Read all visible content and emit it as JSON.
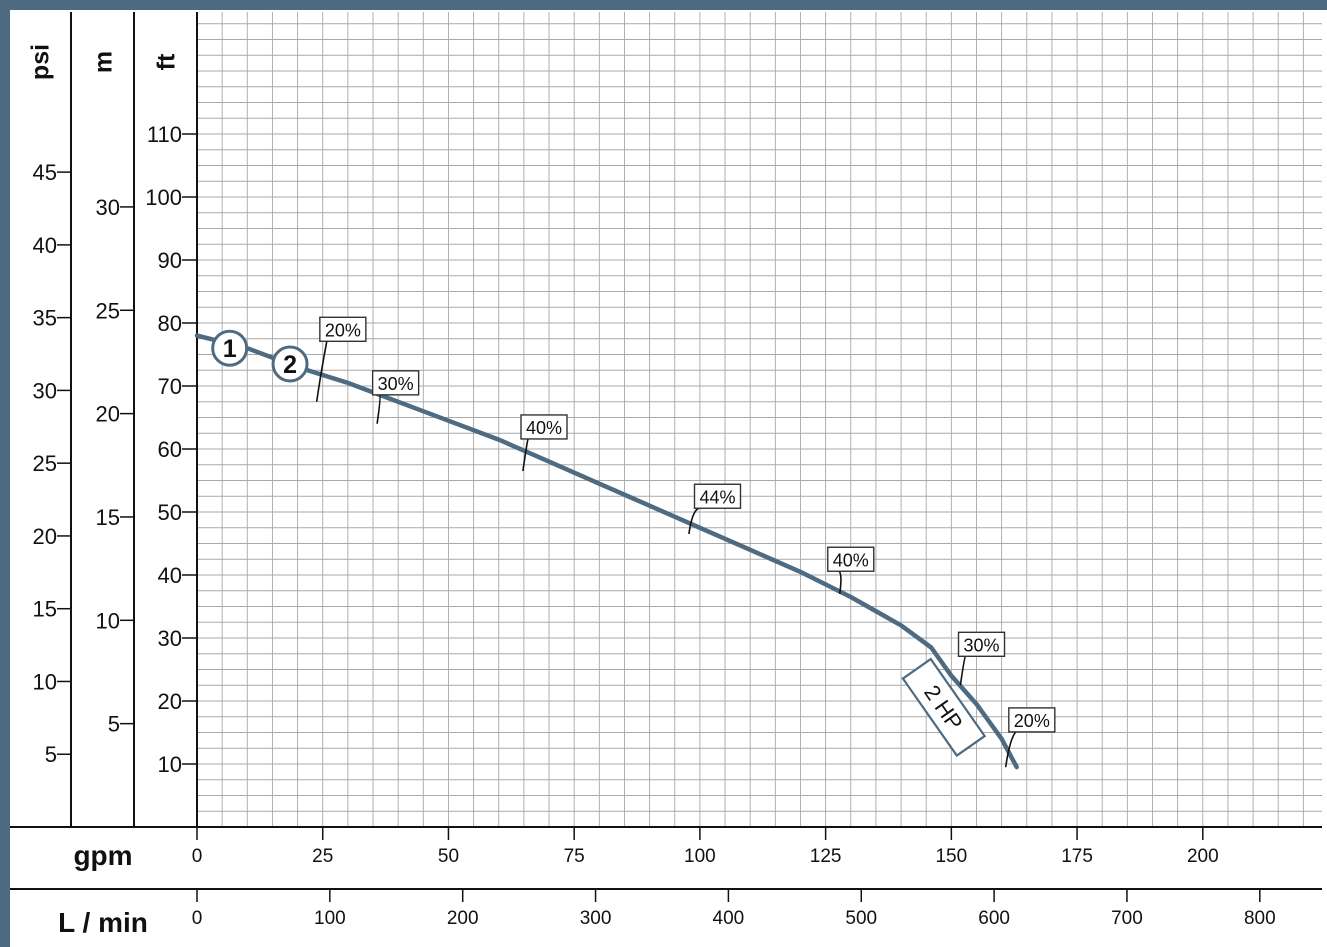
{
  "chart_data": {
    "type": "line",
    "title": "",
    "axes": {
      "flow_gpm": {
        "unit": "gpm",
        "range": [
          0,
          225
        ],
        "ticks": [
          0,
          25,
          50,
          75,
          100,
          125,
          150,
          175,
          200
        ]
      },
      "flow_lmin": {
        "unit": "L / min",
        "ticks": [
          0,
          100,
          200,
          300,
          400,
          500,
          600,
          700,
          800
        ]
      },
      "head_ft": {
        "unit": "ft",
        "range": [
          0,
          125
        ],
        "ticks": [
          10,
          20,
          30,
          40,
          50,
          60,
          70,
          80,
          90,
          100,
          110
        ]
      },
      "head_m": {
        "unit": "m",
        "ticks": [
          5,
          10,
          15,
          20,
          25,
          30
        ]
      },
      "pressure_psi": {
        "unit": "psi",
        "ticks": [
          5,
          10,
          15,
          20,
          25,
          30,
          35,
          40,
          45
        ]
      }
    },
    "grid": true,
    "series": [
      {
        "name": "2 HP",
        "color": "#4e6b82",
        "x": [
          0,
          10,
          20,
          30,
          40,
          50,
          60,
          70,
          80,
          90,
          100,
          110,
          120,
          130,
          140,
          146,
          150,
          155,
          160,
          163
        ],
        "y": [
          78,
          76,
          73,
          70.5,
          67.5,
          64.5,
          61.5,
          58,
          54.5,
          51,
          47.5,
          44,
          40.5,
          36.5,
          32,
          28.5,
          24,
          19.5,
          14,
          9.5
        ]
      }
    ],
    "callouts": [
      {
        "label": "1",
        "x": 6.5,
        "y": 76
      },
      {
        "label": "2",
        "x": 18.5,
        "y": 73.5
      }
    ],
    "efficiency_labels": [
      {
        "label": "20%",
        "x": 25,
        "y": 71,
        "box_x": 29,
        "box_y": 79
      },
      {
        "label": "30%",
        "x": 37,
        "y": 67.5,
        "box_x": 39.5,
        "box_y": 70.5
      },
      {
        "label": "40%",
        "x": 66,
        "y": 60,
        "box_x": 69,
        "box_y": 63.5
      },
      {
        "label": "44%",
        "x": 99,
        "y": 50,
        "box_x": 103.5,
        "box_y": 52.5
      },
      {
        "label": "40%",
        "x": 129,
        "y": 40.5,
        "box_x": 130,
        "box_y": 42.5
      },
      {
        "label": "30%",
        "x": 153,
        "y": 26,
        "box_x": 156,
        "box_y": 29
      },
      {
        "label": "20%",
        "x": 162,
        "y": 13,
        "box_x": 166,
        "box_y": 17
      }
    ],
    "series_label": {
      "text": "2 HP",
      "x": 148.5,
      "y": 19,
      "rotation": 55
    }
  }
}
